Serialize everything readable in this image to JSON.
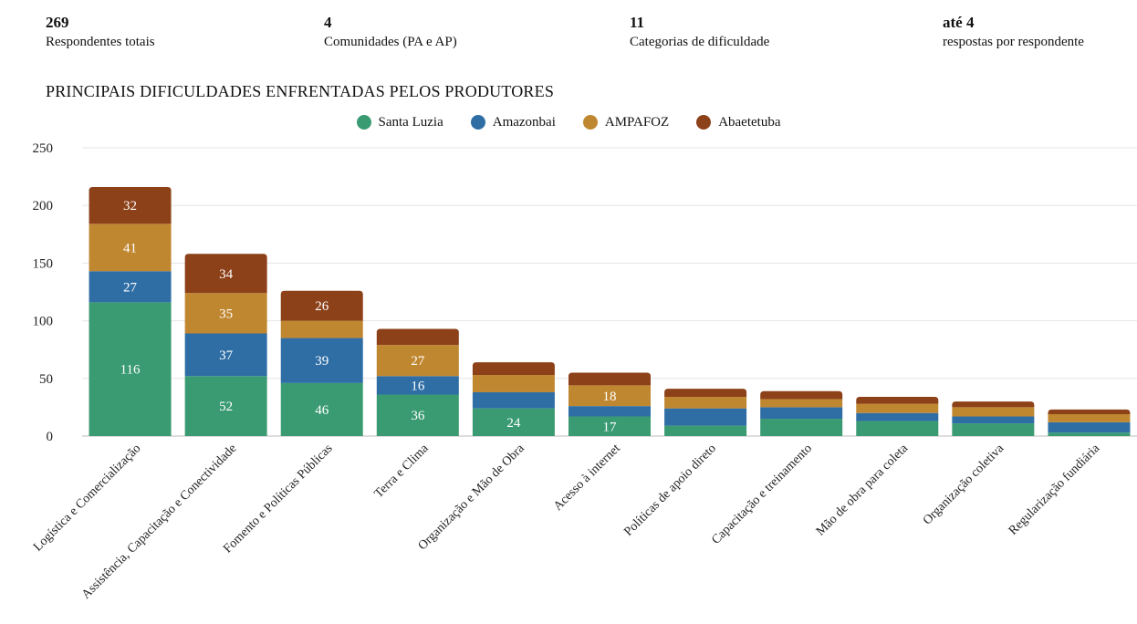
{
  "stats": [
    {
      "value": "269",
      "label": "Respondentes totais"
    },
    {
      "value": "4",
      "label": "Comunidades (PA e AP)"
    },
    {
      "value": "11",
      "label": "Categorias de dificuldade"
    },
    {
      "value": "até 4",
      "label": "respostas por respondente"
    }
  ],
  "chart_data": {
    "type": "bar",
    "stacked": true,
    "title": "PRINCIPAIS DIFICULDADES ENFRENTADAS PELOS PRODUTORES",
    "xlabel": "",
    "ylabel": "",
    "ylim": [
      0,
      250
    ],
    "yticks": [
      0,
      50,
      100,
      150,
      200,
      250
    ],
    "grid": true,
    "legend_position": "top-center",
    "categories": [
      "Logística e Comercialização",
      "Assistência, Capacitação e Conectividade",
      "Fomento e Políticas Públicas",
      "Terra e Clima",
      "Organização e Mão de Obra",
      "Acesso à internet",
      "Políticas de apoio direto",
      "Capacitação e treinamento",
      "Mão de obra para coleta",
      "Organização coletiva",
      "Regularização fundiária"
    ],
    "series": [
      {
        "name": "Santa Luzia",
        "color": "#3a9b72",
        "values": [
          116,
          52,
          46,
          36,
          24,
          17,
          9,
          15,
          13,
          11,
          3
        ]
      },
      {
        "name": "Amazonbai",
        "color": "#2f6ea5",
        "values": [
          27,
          37,
          39,
          16,
          14,
          9,
          15,
          10,
          7,
          6,
          9
        ]
      },
      {
        "name": "AMPAFOZ",
        "color": "#c08731",
        "values": [
          41,
          35,
          15,
          27,
          15,
          18,
          10,
          7,
          8,
          8,
          7
        ]
      },
      {
        "name": "Abaetetuba",
        "color": "#8c4119",
        "values": [
          32,
          34,
          26,
          14,
          11,
          11,
          7,
          7,
          6,
          5,
          4
        ]
      }
    ],
    "data_labels": [
      [
        116,
        52,
        46,
        36,
        24,
        17,
        null,
        null,
        null,
        null,
        null
      ],
      [
        27,
        37,
        39,
        16,
        null,
        null,
        null,
        null,
        null,
        null,
        null
      ],
      [
        41,
        35,
        null,
        27,
        null,
        18,
        null,
        null,
        null,
        null,
        null
      ],
      [
        32,
        34,
        26,
        null,
        null,
        null,
        null,
        null,
        null,
        null,
        null
      ]
    ]
  }
}
